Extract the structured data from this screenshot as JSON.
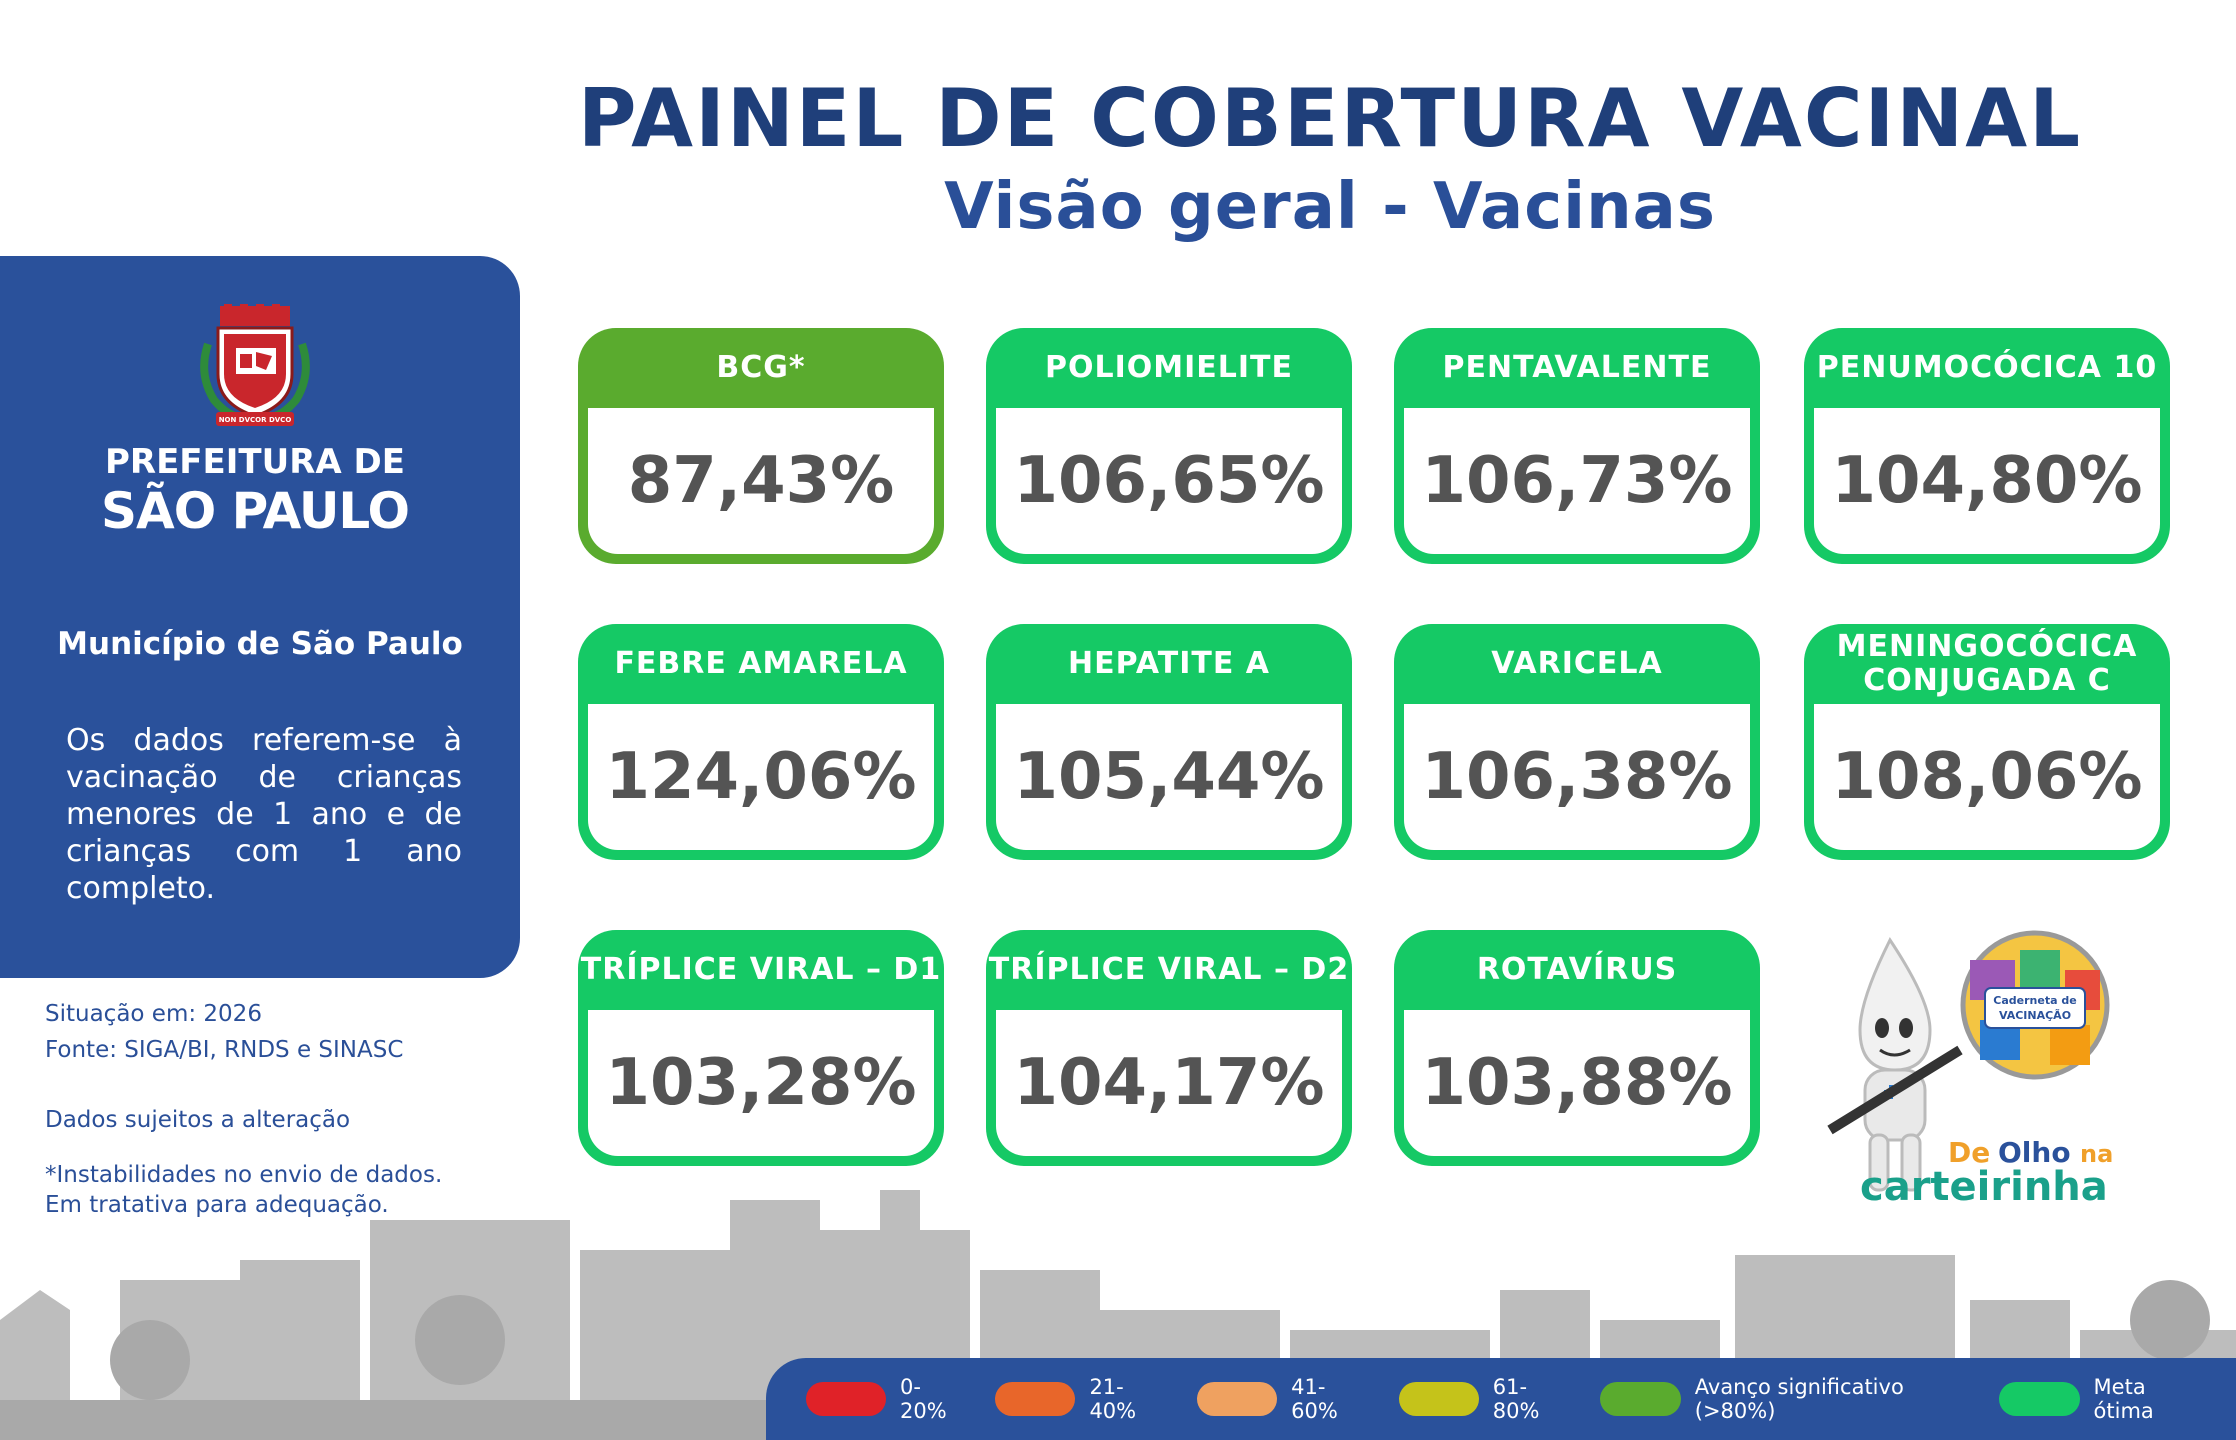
{
  "header": {
    "title": "PAINEL DE COBERTURA VACINAL",
    "subtitle": "Visão geral - Vacinas"
  },
  "sidebar": {
    "org_line1": "PREFEITURA DE",
    "org_line2": "SÃO PAULO",
    "crest_motto": "NON DVCOR DVCO",
    "municipio": "Município de São Paulo",
    "description": "Os dados referem-se à vacinação de crianças menores de 1 ano e de crianças com 1 ano completo."
  },
  "notes": {
    "situacao": "Situação em: 2026",
    "fonte": "Fonte: SIGA/BI, RNDS e SINASC",
    "sujeitos": "Dados sujeitos a alteração",
    "instab_1": "*Instabilidades no envio de dados.",
    "instab_2": "Em tratativa para adequação."
  },
  "cards": [
    {
      "label": "BCG*",
      "value": "87,43%",
      "status": "avanco"
    },
    {
      "label": "POLIOMIELITE",
      "value": "106,65%",
      "status": "meta"
    },
    {
      "label": "PENTAVALENTE",
      "value": "106,73%",
      "status": "meta"
    },
    {
      "label": "PENUMOCÓCICA 10",
      "value": "104,80%",
      "status": "meta"
    },
    {
      "label": "FEBRE AMARELA",
      "value": "124,06%",
      "status": "meta"
    },
    {
      "label": "HEPATITE A",
      "value": "105,44%",
      "status": "meta"
    },
    {
      "label": "VARICELA",
      "value": "106,38%",
      "status": "meta"
    },
    {
      "label": "MENINGOCÓCICA CONJUGADA C",
      "value": "108,06%",
      "status": "meta"
    },
    {
      "label": "TRÍPLICE VIRAL – D1",
      "value": "103,28%",
      "status": "meta"
    },
    {
      "label": "TRÍPLICE VIRAL – D2",
      "value": "104,17%",
      "status": "meta"
    },
    {
      "label": "ROTAVÍRUS",
      "value": "103,88%",
      "status": "meta"
    }
  ],
  "campaign": {
    "badge_line1": "Caderneta de",
    "badge_line2": "VACINAÇÃO",
    "de": "De",
    "olho": "Olho",
    "na": "na",
    "carteirinha": "carteirinha",
    "icon": "ze-gotinha-mascot-icon"
  },
  "legend": [
    {
      "label": "0-20%",
      "color": "#e02228"
    },
    {
      "label": "21-40%",
      "color": "#e8662a"
    },
    {
      "label": "41-60%",
      "color": "#efa160"
    },
    {
      "label": "61-80%",
      "color": "#c5c31a"
    },
    {
      "label": "Avanço significativo (>80%)",
      "color": "#5aab2e"
    },
    {
      "label": "Meta ótima",
      "color": "#15c965"
    }
  ],
  "colors": {
    "title": "#1f3f7a",
    "sidebar_bg": "#2a519b",
    "meta": "#15c965",
    "avanco": "#5aab2e",
    "value_text": "#545454"
  }
}
